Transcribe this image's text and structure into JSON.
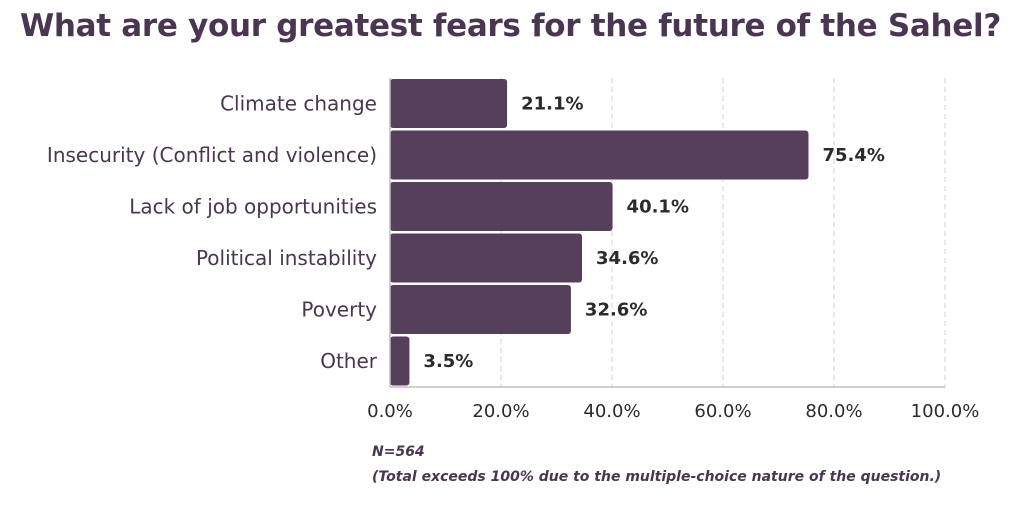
{
  "chart_data": {
    "type": "bar",
    "orientation": "horizontal",
    "title": "What are your greatest fears for the future of the Sahel?",
    "categories": [
      "Climate change",
      "Insecurity (Conflict and violence)",
      "Lack of job opportunities",
      "Political instability",
      "Poverty",
      "Other"
    ],
    "values": [
      21.1,
      75.4,
      40.1,
      34.6,
      32.6,
      3.5
    ],
    "value_labels": [
      "21.1%",
      "75.4%",
      "40.1%",
      "34.6%",
      "32.6%",
      "3.5%"
    ],
    "xlim": [
      0,
      100
    ],
    "xticks": [
      0,
      20,
      40,
      60,
      80,
      100
    ],
    "xtick_labels": [
      "0.0%",
      "20.0%",
      "40.0%",
      "60.0%",
      "80.0%",
      "100.0%"
    ],
    "xlabel": "",
    "ylabel": "",
    "grid": "vertical dashed",
    "bar_color": "#553f5b",
    "notes": [
      "N=564",
      "(Total exceeds 100% due to the multiple-choice nature of the question.)"
    ]
  },
  "colors": {
    "title": "#4a3650",
    "bar": "#553f5b",
    "grid": "#d9d9d9",
    "axis": "#bfbfbf"
  }
}
